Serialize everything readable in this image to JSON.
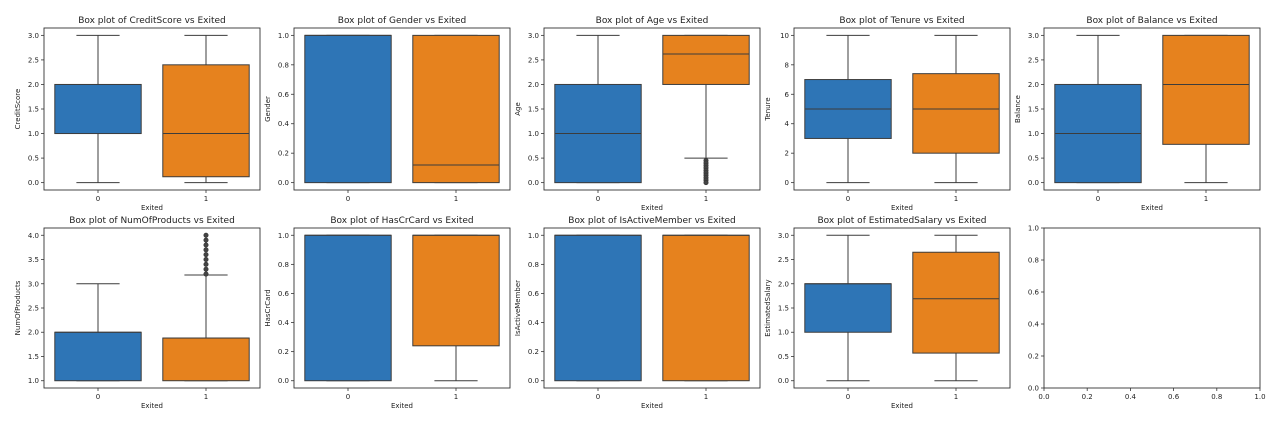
{
  "chart_data": [
    {
      "type": "boxplot",
      "title": "Box plot of CreditScore vs Exited",
      "xlabel": "Exited",
      "ylabel": "CreditScore",
      "categories": [
        "0",
        "1"
      ],
      "ylim": [
        -0.15,
        3.15
      ],
      "yticks": [
        "0.0",
        "0.5",
        "1.0",
        "1.5",
        "2.0",
        "2.5",
        "3.0"
      ],
      "boxes": [
        {
          "min": 0,
          "q1": 1.0,
          "median": 2.0,
          "q3": 2.0,
          "max": 3.0,
          "outliers": []
        },
        {
          "min": 0,
          "q1": 0.12,
          "median": 1.0,
          "q3": 2.4,
          "max": 3.0,
          "outliers": []
        }
      ]
    },
    {
      "type": "boxplot",
      "title": "Box plot of Gender vs Exited",
      "xlabel": "",
      "ylabel": "Gender",
      "categories": [
        "0",
        "1"
      ],
      "ylim": [
        -0.05,
        1.05
      ],
      "yticks": [
        "0.0",
        "0.2",
        "0.4",
        "0.6",
        "0.8",
        "1.0"
      ],
      "boxes": [
        {
          "min": 0,
          "q1": 0,
          "median": 1.0,
          "q3": 1.0,
          "max": 1.0,
          "outliers": []
        },
        {
          "min": 0,
          "q1": 0,
          "median": 0.12,
          "q3": 1.0,
          "max": 1.0,
          "outliers": []
        }
      ]
    },
    {
      "type": "boxplot",
      "title": "Box plot of Age vs Exited",
      "xlabel": "Exited",
      "ylabel": "Age",
      "categories": [
        "0",
        "1"
      ],
      "ylim": [
        -0.15,
        3.15
      ],
      "yticks": [
        "0.0",
        "0.5",
        "1.0",
        "1.5",
        "2.0",
        "2.5",
        "3.0"
      ],
      "boxes": [
        {
          "min": 0,
          "q1": 0,
          "median": 1.0,
          "q3": 2.0,
          "max": 3.0,
          "outliers": []
        },
        {
          "min": 0.5,
          "q1": 2.0,
          "median": 2.62,
          "q3": 3.0,
          "max": 3.0,
          "outliers": [
            0.45,
            0.4,
            0.35,
            0.3,
            0.25,
            0.2,
            0.15,
            0.1,
            0.05,
            0.0
          ]
        }
      ]
    },
    {
      "type": "boxplot",
      "title": "Box plot of Tenure vs Exited",
      "xlabel": "Exited",
      "ylabel": "Tenure",
      "categories": [
        "0",
        "1"
      ],
      "ylim": [
        -0.5,
        10.5
      ],
      "yticks": [
        "0",
        "2",
        "4",
        "6",
        "8",
        "10"
      ],
      "boxes": [
        {
          "min": 0,
          "q1": 3.0,
          "median": 5.0,
          "q3": 7.0,
          "max": 10.0,
          "outliers": []
        },
        {
          "min": 0,
          "q1": 2.0,
          "median": 5.0,
          "q3": 7.4,
          "max": 10.0,
          "outliers": []
        }
      ]
    },
    {
      "type": "boxplot",
      "title": "Box plot of Balance vs Exited",
      "xlabel": "Exited",
      "ylabel": "Balance",
      "categories": [
        "0",
        "1"
      ],
      "ylim": [
        -0.15,
        3.15
      ],
      "yticks": [
        "0.0",
        "0.5",
        "1.0",
        "1.5",
        "2.0",
        "2.5",
        "3.0"
      ],
      "boxes": [
        {
          "min": 0,
          "q1": 0,
          "median": 1.0,
          "q3": 2.0,
          "max": 3.0,
          "outliers": []
        },
        {
          "min": 0,
          "q1": 0.78,
          "median": 2.0,
          "q3": 3.0,
          "max": 3.0,
          "outliers": []
        }
      ]
    },
    {
      "type": "boxplot",
      "title": "Box plot of NumOfProducts vs Exited",
      "xlabel": "Exited",
      "ylabel": "NumOfProducts",
      "categories": [
        "0",
        "1"
      ],
      "ylim": [
        0.85,
        4.15
      ],
      "yticks": [
        "1.0",
        "1.5",
        "2.0",
        "2.5",
        "3.0",
        "3.5",
        "4.0"
      ],
      "boxes": [
        {
          "min": 1.0,
          "q1": 1.0,
          "median": 2.0,
          "q3": 2.0,
          "max": 3.0,
          "outliers": []
        },
        {
          "min": 1.0,
          "q1": 1.0,
          "median": 1.88,
          "q3": 1.88,
          "max": 3.18,
          "outliers": [
            3.2,
            3.3,
            3.4,
            3.5,
            3.6,
            3.7,
            3.8,
            3.9,
            4.0
          ]
        }
      ]
    },
    {
      "type": "boxplot",
      "title": "Box plot of HasCrCard vs Exited",
      "xlabel": "Exited",
      "ylabel": "HasCrCard",
      "categories": [
        "0",
        "1"
      ],
      "ylim": [
        -0.05,
        1.05
      ],
      "yticks": [
        "0.0",
        "0.2",
        "0.4",
        "0.6",
        "0.8",
        "1.0"
      ],
      "boxes": [
        {
          "min": 0,
          "q1": 0,
          "median": 1.0,
          "q3": 1.0,
          "max": 1.0,
          "outliers": []
        },
        {
          "min": 0,
          "q1": 0.24,
          "median": 1.0,
          "q3": 1.0,
          "max": 1.0,
          "outliers": []
        }
      ]
    },
    {
      "type": "boxplot",
      "title": "Box plot of IsActiveMember vs Exited",
      "xlabel": "Exited",
      "ylabel": "IsActiveMember",
      "categories": [
        "0",
        "1"
      ],
      "ylim": [
        -0.05,
        1.05
      ],
      "yticks": [
        "0.0",
        "0.2",
        "0.4",
        "0.6",
        "0.8",
        "1.0"
      ],
      "boxes": [
        {
          "min": 0,
          "q1": 0,
          "median": 1.0,
          "q3": 1.0,
          "max": 1.0,
          "outliers": []
        },
        {
          "min": 0,
          "q1": 0,
          "median": 1.0,
          "q3": 1.0,
          "max": 1.0,
          "outliers": []
        }
      ]
    },
    {
      "type": "boxplot",
      "title": "Box plot of EstimatedSalary vs Exited",
      "xlabel": "Exited",
      "ylabel": "EstimatedSalary",
      "categories": [
        "0",
        "1"
      ],
      "ylim": [
        -0.15,
        3.15
      ],
      "yticks": [
        "0.0",
        "0.5",
        "1.0",
        "1.5",
        "2.0",
        "2.5",
        "3.0"
      ],
      "boxes": [
        {
          "min": 0,
          "q1": 1.0,
          "median": 2.0,
          "q3": 2.0,
          "max": 3.0,
          "outliers": []
        },
        {
          "min": 0,
          "q1": 0.57,
          "median": 1.69,
          "q3": 2.65,
          "max": 3.0,
          "outliers": []
        }
      ]
    },
    {
      "type": "empty",
      "title": "",
      "xlabel": "",
      "ylabel": "",
      "xticks": [
        "0.0",
        "0.2",
        "0.4",
        "0.6",
        "0.8",
        "1.0"
      ],
      "yticks": [
        "0.0",
        "0.2",
        "0.4",
        "0.6",
        "0.8",
        "1.0"
      ],
      "xlim": [
        0,
        1
      ],
      "ylim": [
        0,
        1
      ]
    }
  ],
  "colors": {
    "category_0": "#2e75b6",
    "category_1": "#e6821e",
    "line": "#3c3c3c",
    "axis": "#333333"
  }
}
